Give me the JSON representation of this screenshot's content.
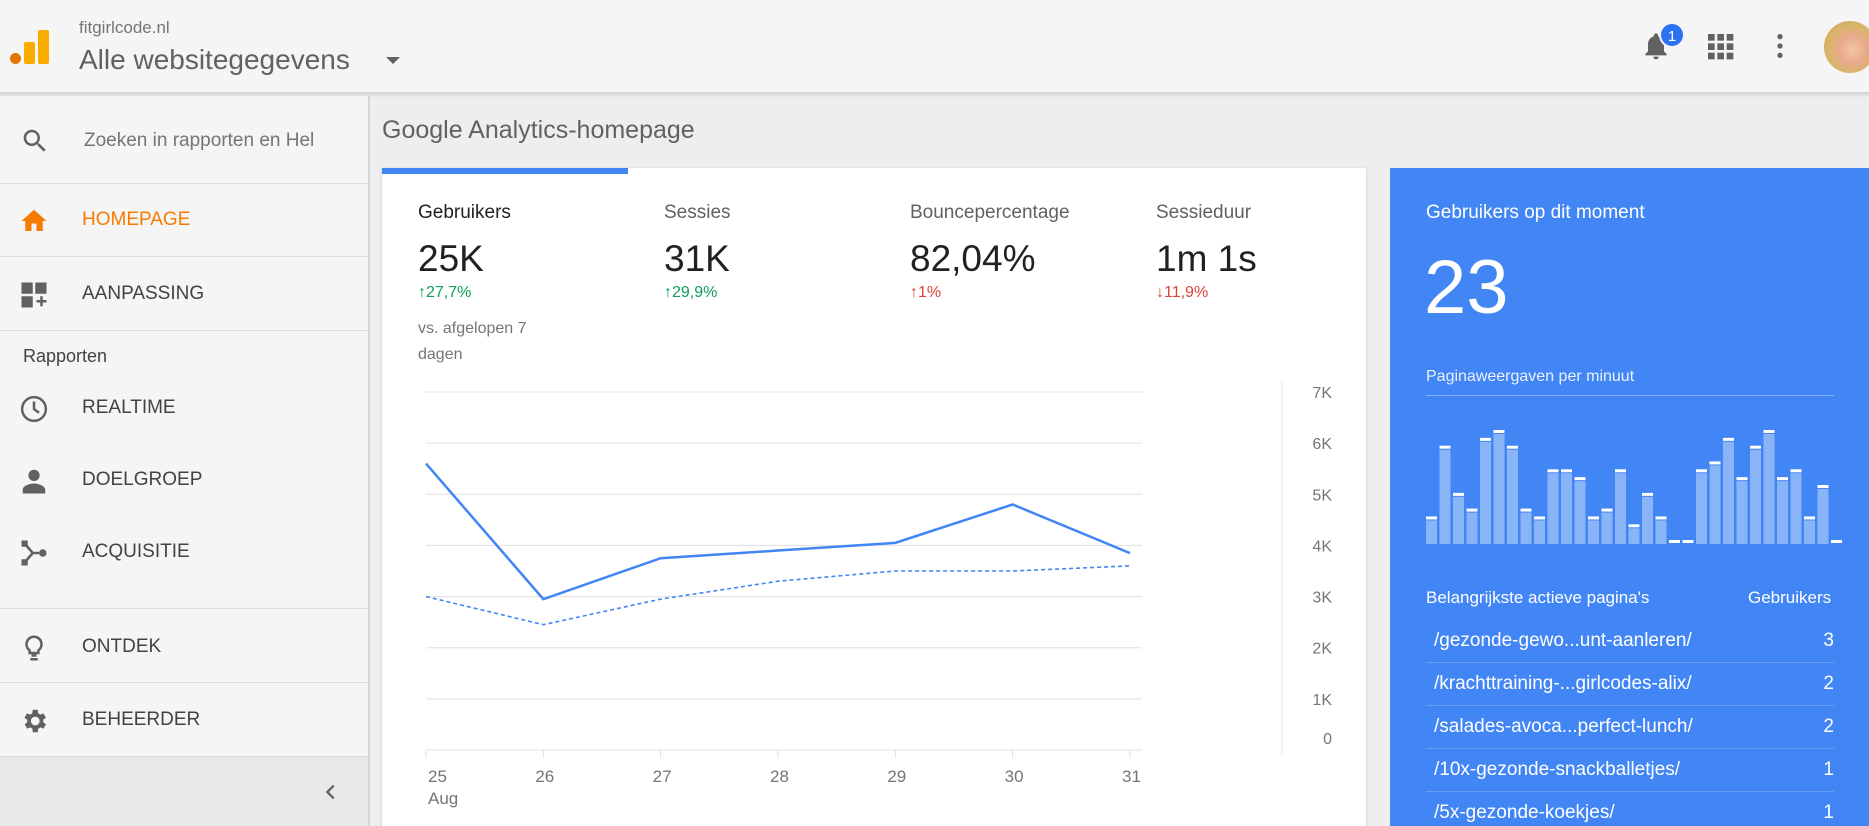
{
  "header": {
    "site_name": "fitgirlcode.nl",
    "property_view": "Alle websitegegevens",
    "notification_count": "1"
  },
  "sidebar": {
    "search_placeholder": "Zoeken in rapporten en Hel",
    "items": [
      {
        "label": "HOMEPAGE",
        "icon": "home-icon",
        "active": true
      },
      {
        "label": "AANPASSING",
        "icon": "dashboard-add-icon",
        "active": false
      },
      {
        "label": "REALTIME",
        "icon": "clock-icon",
        "active": false
      },
      {
        "label": "DOELGROEP",
        "icon": "person-icon",
        "active": false
      },
      {
        "label": "ACQUISITIE",
        "icon": "acquisition-icon",
        "active": false
      },
      {
        "label": "ONTDEK",
        "icon": "lightbulb-icon",
        "active": false
      },
      {
        "label": "BEHEERDER",
        "icon": "gear-icon",
        "active": false
      }
    ],
    "section_label": "Rapporten"
  },
  "main": {
    "page_title": "Google Analytics-homepage",
    "metrics": [
      {
        "label": "Gebruikers",
        "value": "25K",
        "delta": "27,7%",
        "direction": "up",
        "good": true
      },
      {
        "label": "Sessies",
        "value": "31K",
        "delta": "29,9%",
        "direction": "up",
        "good": true
      },
      {
        "label": "Bouncepercentage",
        "value": "82,04%",
        "delta": "1%",
        "direction": "up",
        "good": false
      },
      {
        "label": "Sessieduur",
        "value": "1m 1s",
        "delta": "11,9%",
        "direction": "down",
        "good": false
      }
    ],
    "compare_text": "vs. afgelopen 7 dagen"
  },
  "chart_data": {
    "type": "line",
    "x": [
      "25",
      "26",
      "27",
      "28",
      "29",
      "30",
      "31"
    ],
    "x_month_label": "Aug",
    "y_ticks": [
      "0",
      "1K",
      "2K",
      "3K",
      "4K",
      "5K",
      "6K",
      "7K"
    ],
    "ylim": [
      0,
      7000
    ],
    "grid": true,
    "series": [
      {
        "style": "solid",
        "values": [
          5600,
          2950,
          3750,
          3900,
          4050,
          4800,
          3850
        ]
      },
      {
        "style": "dashed",
        "values": [
          3000,
          2450,
          2950,
          3300,
          3500,
          3500,
          3600
        ]
      }
    ],
    "colors": {
      "line": "#4285f4",
      "grid": "#e0e0e0",
      "axis_text": "#757575"
    }
  },
  "realtime": {
    "title": "Gebruikers op dit moment",
    "count": "23",
    "pageviews_label": "Paginaweergaven per minuut",
    "pageviews_bars": [
      3,
      12,
      6,
      4,
      13,
      14,
      12,
      4,
      3,
      9,
      9,
      8,
      3,
      4,
      9,
      2,
      6,
      3,
      0,
      0,
      9,
      10,
      13,
      8,
      12,
      14,
      8,
      9,
      3,
      7,
      0
    ],
    "table_header_page": "Belangrijkste actieve pagina's",
    "table_header_users": "Gebruikers",
    "pages": [
      {
        "page": "/gezonde-gewo...unt-aanleren/",
        "users": "3"
      },
      {
        "page": "/krachttraining-...girlcodes-alix/",
        "users": "2"
      },
      {
        "page": "/salades-avoca...perfect-lunch/",
        "users": "2"
      },
      {
        "page": "/10x-gezonde-snackballetjes/",
        "users": "1"
      },
      {
        "page": "/5x-gezonde-koekjes/",
        "users": "1"
      }
    ]
  }
}
